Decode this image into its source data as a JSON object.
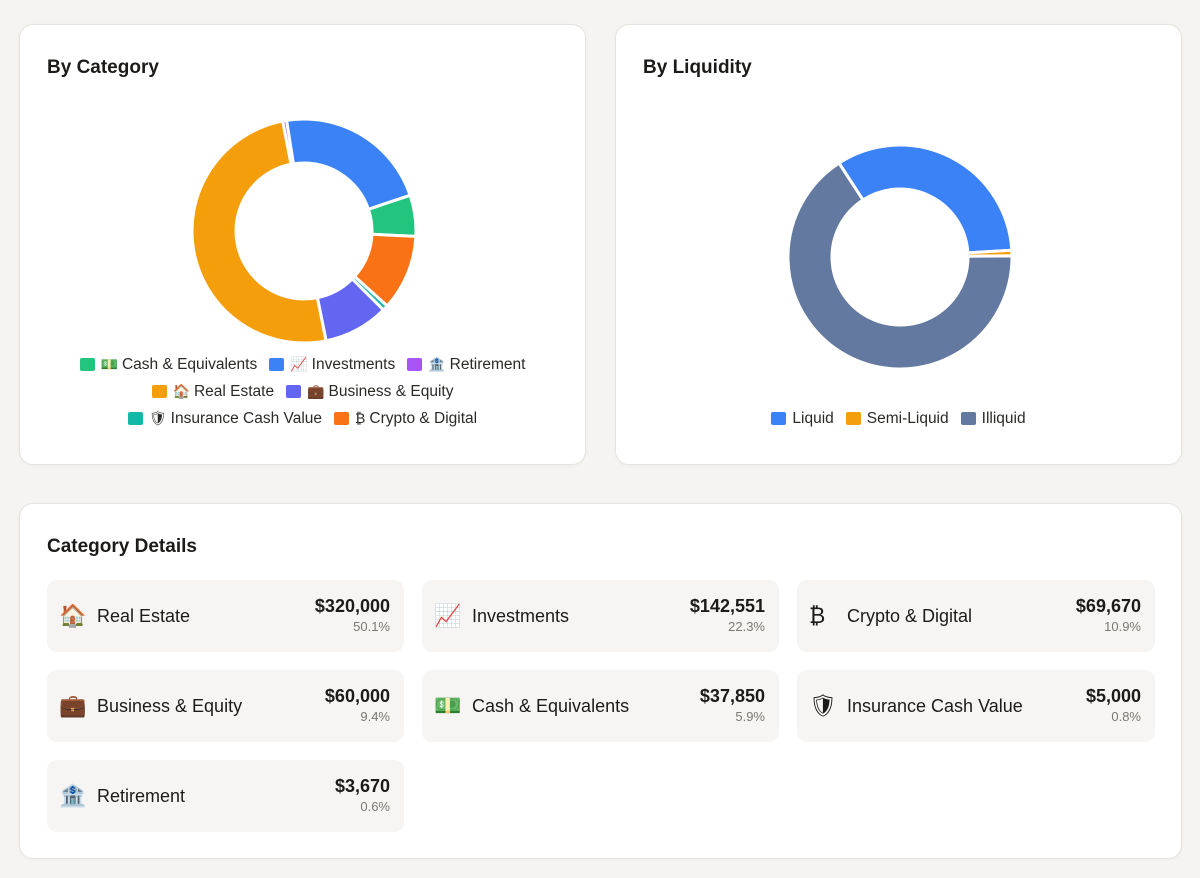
{
  "category_card": {
    "title": "By Category",
    "legend": [
      {
        "icon": "💵",
        "label": "Cash & Equivalents",
        "color": "#22c47e"
      },
      {
        "icon": "📈",
        "label": "Investments",
        "color": "#3b82f6"
      },
      {
        "icon": "🏦",
        "label": "Retirement",
        "color": "#a855f7"
      },
      {
        "icon": "🏠",
        "label": "Real Estate",
        "color": "#f59e0b"
      },
      {
        "icon": "💼",
        "label": "Business & Equity",
        "color": "#6366f1"
      },
      {
        "icon": "🛡",
        "label": "Insurance Cash Value",
        "color": "#14b8a6"
      },
      {
        "icon": "₿",
        "label": "Crypto & Digital",
        "color": "#f97316"
      }
    ]
  },
  "liquidity_card": {
    "title": "By Liquidity",
    "legend": [
      {
        "label": "Liquid",
        "color": "#3b82f6"
      },
      {
        "label": "Semi-Liquid",
        "color": "#f59e0b"
      },
      {
        "label": "Illiquid",
        "color": "#64799f"
      }
    ]
  },
  "details_card": {
    "title": "Category Details",
    "items": [
      {
        "icon": "🏠",
        "name": "Real Estate",
        "amount": "$320,000",
        "percent": "50.1%"
      },
      {
        "icon": "📈",
        "name": "Investments",
        "amount": "$142,551",
        "percent": "22.3%"
      },
      {
        "icon": "₿",
        "name": "Crypto & Digital",
        "amount": "$69,670",
        "percent": "10.9%"
      },
      {
        "icon": "💼",
        "name": "Business & Equity",
        "amount": "$60,000",
        "percent": "9.4%"
      },
      {
        "icon": "💵",
        "name": "Cash & Equivalents",
        "amount": "$37,850",
        "percent": "5.9%"
      },
      {
        "icon": "🛡",
        "name": "Insurance Cash Value",
        "amount": "$5,000",
        "percent": "0.8%"
      },
      {
        "icon": "🏦",
        "name": "Retirement",
        "amount": "$3,670",
        "percent": "0.6%"
      }
    ]
  },
  "chart_data": [
    {
      "type": "pie",
      "title": "By Category",
      "categories": [
        "Retirement",
        "Investments",
        "Cash & Equivalents",
        "Crypto & Digital",
        "Insurance Cash Value",
        "Business & Equity",
        "Real Estate"
      ],
      "values": [
        3670,
        142551,
        37850,
        69670,
        5000,
        60000,
        320000
      ],
      "colors": [
        "#a855f7",
        "#3b82f6",
        "#22c47e",
        "#f97316",
        "#14b8a6",
        "#6366f1",
        "#f59e0b"
      ],
      "legend_position": "bottom"
    },
    {
      "type": "pie",
      "title": "By Liquidity",
      "categories": [
        "Liquid",
        "Semi-Liquid",
        "Illiquid"
      ],
      "values": [
        33.2,
        0.8,
        66.0
      ],
      "colors": [
        "#3b82f6",
        "#f59e0b",
        "#64799f"
      ],
      "legend_position": "bottom"
    }
  ]
}
